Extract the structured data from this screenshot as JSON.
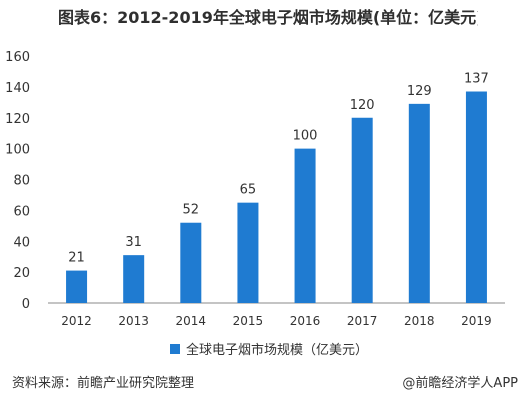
{
  "title": "图表6：2012-2019年全球电子烟市场规模(单位：亿美元)",
  "legend_label": "全球电子烟市场规模（亿美元）",
  "source_text": "资料来源：前瞻产业研究院整理",
  "credit_text": "@前瞻经济学人APP",
  "colors": {
    "bar": "#1f7bd1",
    "axis": "#8a8a8a",
    "text": "#333333"
  },
  "chart_data": {
    "type": "bar",
    "title": "图表6：2012-2019年全球电子烟市场规模(单位：亿美元)",
    "categories": [
      "2012",
      "2013",
      "2014",
      "2015",
      "2016",
      "2017",
      "2018",
      "2019"
    ],
    "series": [
      {
        "name": "全球电子烟市场规模（亿美元）",
        "values": [
          21,
          31,
          52,
          65,
          100,
          120,
          129,
          137
        ]
      }
    ],
    "ylim": [
      0,
      160
    ],
    "yticks": [
      0,
      20,
      40,
      60,
      80,
      100,
      120,
      140,
      160
    ],
    "grid": false,
    "legend_position": "bottom"
  }
}
